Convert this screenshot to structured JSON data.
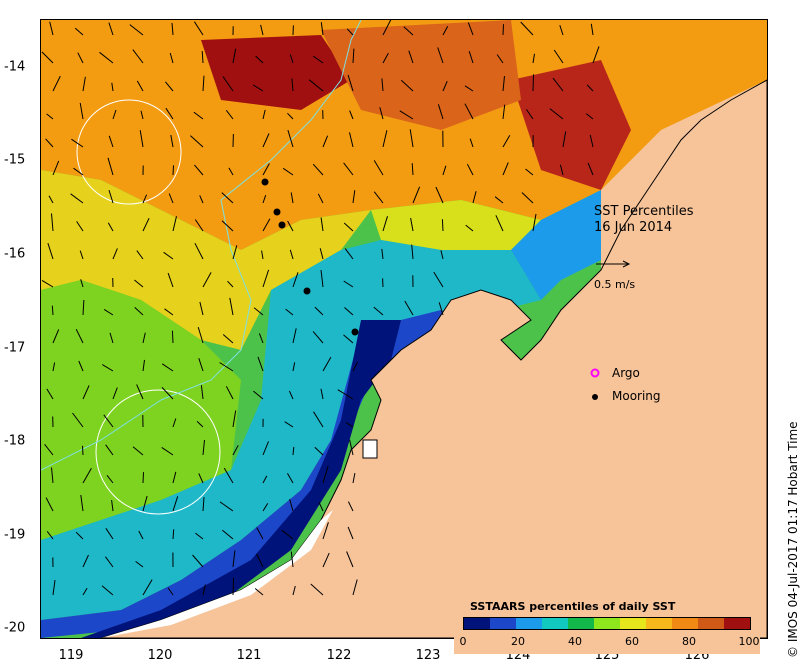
{
  "map": {
    "title_line1": "SST Percentiles",
    "title_line2": "16 Jun 2014",
    "scale_label": "0.5 m/s",
    "credit": "© IMOS 04-Jul-2017 01:17 Hobart Time",
    "x_ticks": [
      "119",
      "120",
      "121",
      "122",
      "123",
      "124",
      "125",
      "126"
    ],
    "y_ticks": [
      "-14",
      "-15",
      "-16",
      "-17",
      "-18",
      "-19",
      "-20"
    ],
    "legend": {
      "argo_label": "Argo",
      "mooring_label": "Mooring"
    },
    "colorbar": {
      "title": "SSTAARS percentiles of daily SST",
      "labels": [
        "0",
        "20",
        "40",
        "60",
        "80",
        "100"
      ],
      "colors": [
        "#00137a",
        "#1d47c9",
        "#1b9bea",
        "#12c9c0",
        "#12b84a",
        "#8ee61c",
        "#e6e61c",
        "#f6b81a",
        "#f08a14",
        "#cf5a18",
        "#a01010"
      ]
    },
    "land_color": "#f7c49a",
    "mooring_count": 5
  }
}
